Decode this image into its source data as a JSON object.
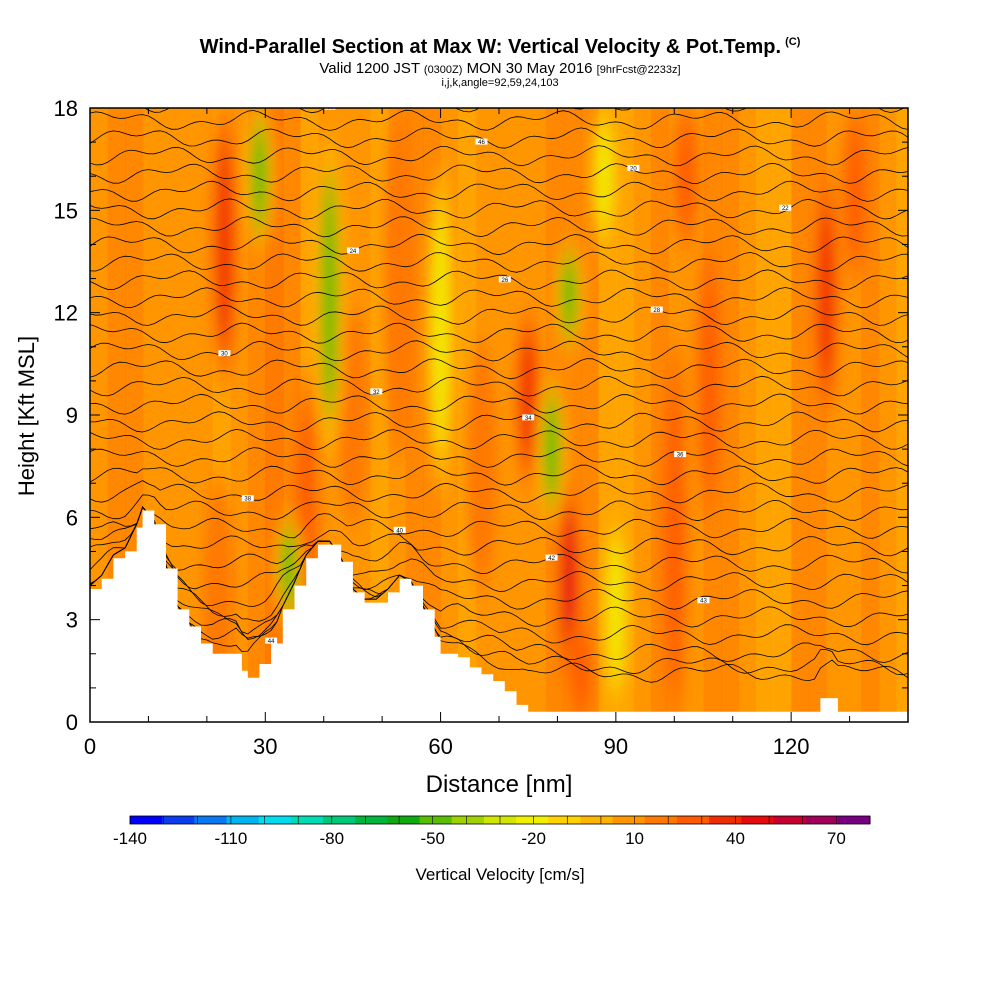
{
  "title": {
    "main": "Wind-Parallel Section at Max W: Vertical Velocity & Pot.Temp.",
    "copyright": "(C)",
    "valid_prefix": "Valid 1200 JST",
    "valid_utc": "(0300Z)",
    "valid_date": "MON 30 May 2016",
    "forecast": "[9hrFcst@2233z]",
    "indices": "i,j,k,angle=92,59,24,103"
  },
  "chart_data": {
    "type": "heatmap",
    "xlabel": "Distance [nm]",
    "ylabel": "Height [Kft MSL]",
    "xlim": [
      0,
      140
    ],
    "ylim": [
      0,
      18
    ],
    "xticks": [
      "0",
      "30",
      "60",
      "90",
      "120"
    ],
    "xtick_values": [
      0,
      30,
      60,
      90,
      120
    ],
    "yticks": [
      "0",
      "3",
      "6",
      "9",
      "12",
      "15",
      "18"
    ],
    "ytick_values": [
      0,
      3,
      6,
      9,
      12,
      15,
      18
    ],
    "grid": false,
    "colorbar": {
      "label": "Vertical Velocity [cm/s]",
      "ticks": [
        "-140",
        "-110",
        "-80",
        "-50",
        "-20",
        "10",
        "40",
        "70"
      ],
      "tick_values": [
        -140,
        -110,
        -80,
        -50,
        -20,
        10,
        40,
        70
      ],
      "range": [
        -140,
        80
      ],
      "colors": [
        "#0000ff",
        "#0a3cf0",
        "#0a78f0",
        "#00b4f0",
        "#00dcf0",
        "#00dcb4",
        "#00c878",
        "#00b43c",
        "#10aa10",
        "#5abe00",
        "#a0d200",
        "#d2e600",
        "#f0f000",
        "#ffd200",
        "#ffb400",
        "#ff9600",
        "#ff7800",
        "#ff5a00",
        "#f02d00",
        "#e60a0a",
        "#c80032",
        "#a0005a",
        "#780082"
      ]
    },
    "terrain": {
      "x": [
        0,
        2,
        4,
        6,
        8,
        9,
        11,
        13,
        15,
        17,
        19,
        21,
        23,
        25,
        26,
        27,
        29,
        31,
        33,
        35,
        37,
        39,
        41,
        43,
        45,
        47,
        49,
        51,
        53,
        55,
        57,
        59,
        60,
        61,
        63,
        65,
        67,
        69,
        71,
        73,
        75,
        77,
        80,
        85,
        90,
        95,
        100,
        110,
        120,
        124,
        125,
        127,
        128,
        130,
        135,
        140
      ],
      "y": [
        3.9,
        4.2,
        4.8,
        5.0,
        5.7,
        6.2,
        5.8,
        4.5,
        3.3,
        2.8,
        2.3,
        2.0,
        2.0,
        2.0,
        1.5,
        1.3,
        1.7,
        2.3,
        3.3,
        4.0,
        4.8,
        5.2,
        5.2,
        4.7,
        3.8,
        3.5,
        3.5,
        3.8,
        4.2,
        4.0,
        3.3,
        2.5,
        2.0,
        2.0,
        1.9,
        1.6,
        1.4,
        1.2,
        0.9,
        0.5,
        0.3,
        0.3,
        0.3,
        0.3,
        0.3,
        0.3,
        0.3,
        0.3,
        0.3,
        0.3,
        0.7,
        0.7,
        0.3,
        0.3,
        0.3,
        0.3
      ]
    },
    "updrafts": [
      {
        "x": 23,
        "ybot": 10,
        "ytop": 18,
        "w": 40
      },
      {
        "x": 22,
        "ybot": 0.5,
        "ytop": 7,
        "w": 20
      },
      {
        "x": 37,
        "ybot": 2,
        "ytop": 10,
        "w": 25
      },
      {
        "x": 45,
        "ybot": 6,
        "ytop": 12,
        "w": 20
      },
      {
        "x": 53,
        "ybot": 8,
        "ytop": 18,
        "w": 20
      },
      {
        "x": 75,
        "ybot": 7,
        "ytop": 12,
        "w": 40
      },
      {
        "x": 82,
        "ybot": 1,
        "ytop": 7,
        "w": 45
      },
      {
        "x": 84,
        "ybot": 0,
        "ytop": 3,
        "w": 30
      },
      {
        "x": 100,
        "ybot": 0,
        "ytop": 11,
        "w": 30
      },
      {
        "x": 102,
        "ybot": 14,
        "ytop": 18,
        "w": 30
      },
      {
        "x": 106,
        "ybot": 6,
        "ytop": 14,
        "w": 25
      },
      {
        "x": 126,
        "ybot": 9,
        "ytop": 16,
        "w": 40
      },
      {
        "x": 131,
        "ybot": 13,
        "ytop": 18,
        "w": 25
      },
      {
        "x": 67,
        "ybot": 4,
        "ytop": 11,
        "w": 20
      }
    ],
    "downdrafts": [
      {
        "x": 29,
        "ybot": 14,
        "ytop": 18,
        "w": -50
      },
      {
        "x": 41,
        "ybot": 8,
        "ytop": 17,
        "w": -45
      },
      {
        "x": 34,
        "ybot": 3,
        "ytop": 6,
        "w": -50
      },
      {
        "x": 79,
        "ybot": 6,
        "ytop": 10,
        "w": -50
      },
      {
        "x": 82,
        "ybot": 11,
        "ytop": 14,
        "w": -45
      },
      {
        "x": 90,
        "ybot": 0.5,
        "ytop": 6,
        "w": -20
      },
      {
        "x": 88,
        "ybot": 14,
        "ytop": 18,
        "w": -20
      },
      {
        "x": 60,
        "ybot": 7,
        "ytop": 16,
        "w": -20
      }
    ],
    "potential_temperature_labels": [
      "46",
      "44",
      "43",
      "42",
      "40",
      "38",
      "36",
      "34",
      "32",
      "30",
      "28",
      "26",
      "24",
      "22",
      "20"
    ]
  }
}
